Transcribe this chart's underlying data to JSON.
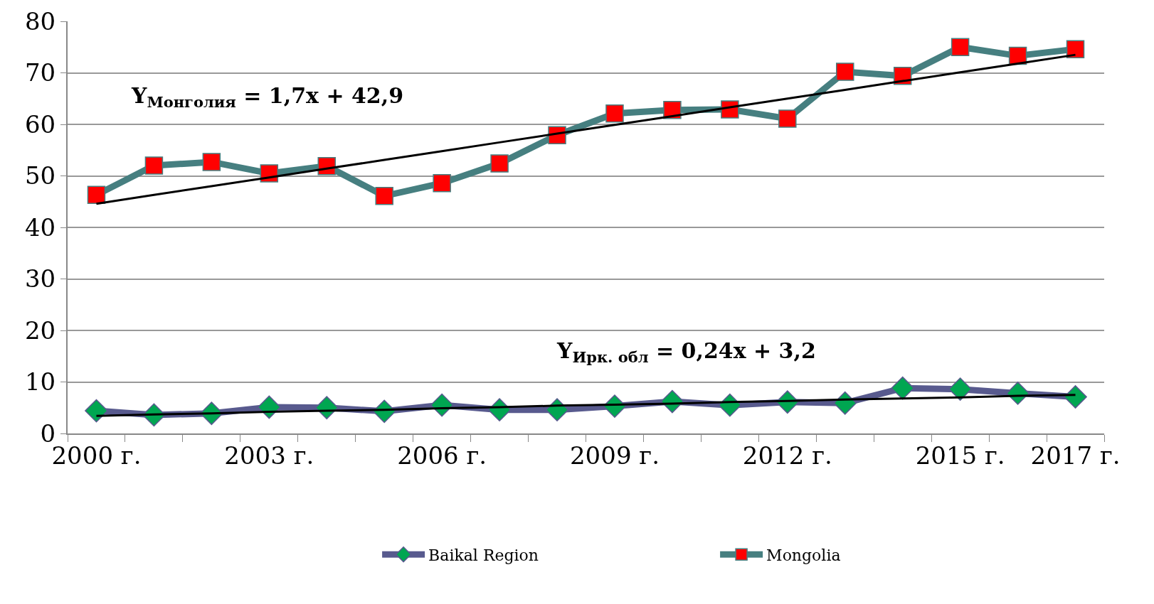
{
  "chart_data": {
    "type": "line",
    "categories": [
      "2000 г.",
      null,
      null,
      "2003 г.",
      null,
      null,
      "2006 г.",
      null,
      null,
      "2009 г.",
      null,
      null,
      "2012 г.",
      null,
      null,
      "2015 г.",
      null,
      "2017 г."
    ],
    "series": [
      {
        "name": "Baikal Region",
        "color": "#585a8e",
        "marker": "diamond",
        "colors": [
          "#00a651",
          "#00a651",
          "#00a651",
          "#00a651",
          "#00a651",
          "#00a651",
          "#00a651",
          "#00a651",
          "#00a651",
          "#00a651",
          "#00a651",
          "#00a651",
          "#00a651",
          "#00a651",
          "#00a651",
          "#00a651",
          "#00a651",
          "#00a651"
        ],
        "values": [
          4.4,
          3.6,
          3.9,
          5.1,
          5.0,
          4.3,
          5.5,
          4.6,
          4.6,
          5.3,
          6.2,
          5.5,
          6.1,
          5.9,
          8.8,
          8.6,
          7.8,
          7.1
        ]
      },
      {
        "name": "Mongolia",
        "color": "#467f80",
        "marker": "square",
        "colors": [
          "#ff0000",
          "#ff0000",
          "#ff0000",
          "#ff0000",
          "#ff0000",
          "#ff0000",
          "#ff0000",
          "#ff0000",
          "#ff0000",
          "#ff0000",
          "#ff0000",
          "#ff0000",
          "#ff0000",
          "#ff0000",
          "#ff0000",
          "#ff0000",
          "#ff0000",
          "#ff0000"
        ],
        "values": [
          46.3,
          52.0,
          52.7,
          50.5,
          51.9,
          46.1,
          48.6,
          52.4,
          57.9,
          62.1,
          62.8,
          62.9,
          61.1,
          70.2,
          69.4,
          75.0,
          73.3,
          74.6
        ]
      },
      {
        "type": "line",
        "color": "#000000",
        "marker": "none",
        "values": [
          3.4,
          3.7,
          3.9,
          4.2,
          4.4,
          4.6,
          4.9,
          5.1,
          5.4,
          5.6,
          5.8,
          6.1,
          6.3,
          6.6,
          6.8,
          7.0,
          7.3,
          7.5
        ]
      },
      {
        "type": "line",
        "color": "#000000",
        "marker": "none",
        "values": [
          44.6,
          46.3,
          48.0,
          49.7,
          51.4,
          53.1,
          54.8,
          56.5,
          58.2,
          59.9,
          61.6,
          63.3,
          65.0,
          66.7,
          68.4,
          70.1,
          71.8,
          73.5
        ]
      }
    ],
    "ylim": [
      0,
      80
    ],
    "yticks": [
      0,
      10,
      20,
      30,
      40,
      50,
      60,
      70,
      80
    ],
    "grid": "y",
    "legend": "bottom",
    "annotations": [
      "Y$_{Монголия}$ = 1,7x + 42,9",
      "Y$_{Ирк. обл}$ = 0,24x + 3,2"
    ]
  }
}
